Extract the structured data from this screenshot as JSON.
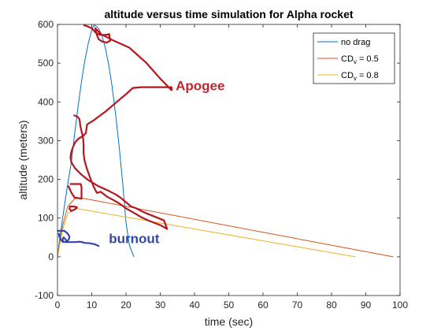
{
  "chart_data": {
    "type": "line",
    "title": "altitude versus time simulation for Alpha rocket",
    "xlabel": "time (sec)",
    "ylabel": "altitude (meters)",
    "xlim": [
      0,
      100
    ],
    "ylim": [
      -100,
      600
    ],
    "xticks": [
      0,
      10,
      20,
      30,
      40,
      50,
      60,
      70,
      80,
      90,
      100
    ],
    "yticks": [
      -100,
      0,
      100,
      200,
      300,
      400,
      500,
      600
    ],
    "grid": false,
    "legend_position": "top-right",
    "series": [
      {
        "name": "no drag",
        "legend": {
          "main": "no drag",
          "sub": "",
          "tail": ""
        },
        "color": "#0072BD",
        "x": [
          0,
          1,
          2,
          3,
          4,
          5,
          6,
          7,
          8,
          9,
          10,
          10.7,
          11,
          12,
          13,
          14,
          15,
          16,
          17,
          18,
          19,
          20,
          21,
          22.3
        ],
        "y": [
          0,
          68,
          130,
          188,
          242,
          318,
          388,
          452,
          508,
          552,
          586,
          598,
          597,
          590,
          571,
          538,
          493,
          436,
          366,
          285,
          192,
          88,
          30,
          0
        ]
      },
      {
        "name": "CDv = 0.5",
        "legend": {
          "main": "CD",
          "sub": "v",
          "tail": " = 0.5"
        },
        "color": "#D95319",
        "x": [
          0,
          1.5,
          3,
          5,
          7,
          98
        ],
        "y": [
          0,
          80,
          130,
          150,
          152,
          0
        ]
      },
      {
        "name": "CDv = 0.8",
        "legend": {
          "main": "CD",
          "sub": "v",
          "tail": " = 0.8"
        },
        "color": "#EDB120",
        "x": [
          0,
          1.5,
          3,
          4.5,
          6,
          87
        ],
        "y": [
          0,
          70,
          110,
          122,
          124,
          0
        ]
      }
    ],
    "annotations": [
      {
        "text": "Apogee",
        "color": "#C0262D",
        "x": 34.5,
        "y": 430
      },
      {
        "text": "burnout",
        "color": "#3048A8",
        "x": 15,
        "y": 35
      }
    ],
    "hand_drawn_marks": [
      {
        "color": "#B5171F",
        "x": [
          7.8,
          9,
          10,
          11,
          12.4,
          14,
          15.1,
          15.4,
          14.3,
          13,
          12,
          11.4,
          11,
          11.3,
          12.7,
          16,
          21,
          26,
          30,
          33.3,
          33.3,
          30,
          27,
          24.5,
          22,
          20,
          18,
          16,
          14,
          12,
          10.5,
          9.2,
          8.6,
          8.3,
          7.5,
          6.1,
          5.2,
          4.6,
          4,
          3.8,
          4.1,
          5.2,
          7,
          9,
          12,
          15,
          17,
          18.5,
          20,
          21.5,
          23,
          24.5,
          26,
          27.5,
          28.8,
          31.1,
          32,
          30,
          27,
          24.5,
          22,
          20,
          18,
          16,
          14.5,
          12.6,
          11.5,
          10.5,
          9.5,
          8.6,
          7.9,
          7.6,
          7.6,
          7.5,
          7.2,
          6.8,
          6.6,
          6.5,
          6.3,
          5.8,
          4.9
        ],
        "y": [
          598,
          594,
          590,
          580,
          573,
          573,
          575,
          558,
          553,
          556,
          562,
          575,
          590,
          588,
          575,
          560,
          540,
          500,
          460,
          430,
          438,
          438,
          438,
          438,
          436,
          420,
          405,
          390,
          375,
          362,
          352,
          345,
          341,
          320,
          312,
          305,
          296,
          285,
          270,
          256,
          243,
          228,
          212,
          198,
          182,
          170,
          161,
          152,
          141,
          130,
          125,
          118,
          112,
          107,
          102,
          94,
          72,
          82,
          92,
          102,
          115,
          125,
          138,
          148,
          155,
          168,
          165,
          182,
          205,
          227,
          248,
          268,
          288,
          304,
          318,
          332,
          342,
          351,
          357,
          362,
          365
        ]
      },
      {
        "color": "#B5171F",
        "x": [
          3.8,
          6.8,
          7,
          7,
          5,
          4.1,
          3.2
        ],
        "y": [
          188,
          188,
          180,
          150,
          153,
          165,
          182
        ]
      },
      {
        "color": "#B5171F",
        "x": [
          3.9,
          4.5,
          5.5,
          5.7,
          4.8,
          3.6,
          3.5,
          4
        ],
        "y": [
          118,
          120,
          125,
          128,
          130,
          130,
          124,
          119
        ]
      },
      {
        "color": "#3344AA",
        "x": [
          0.1,
          2,
          3,
          3.5,
          3.3,
          2.8,
          2.5,
          2.2,
          1.8,
          1.6,
          1.5,
          1.7,
          2.2,
          3.5,
          5,
          6.5,
          7.2,
          7.9,
          9.5,
          11,
          12
        ],
        "y": [
          67,
          67,
          60,
          52,
          45,
          40,
          42,
          47,
          50,
          48,
          44,
          39,
          38,
          38,
          38,
          39,
          38,
          36,
          35,
          32,
          28
        ]
      },
      {
        "color": "#3344AA",
        "x": [
          0.4,
          0.6,
          1.0,
          1.6
        ],
        "y": [
          60,
          51,
          44,
          38
        ]
      }
    ]
  }
}
